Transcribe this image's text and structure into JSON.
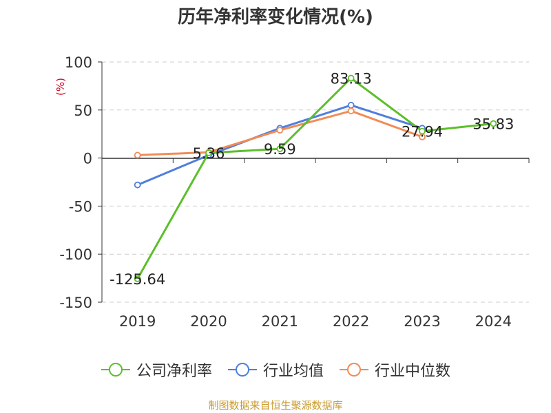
{
  "chart_data": {
    "type": "line",
    "title": "历年净利率变化情况(%)",
    "ylabel": "(%)",
    "ylim": [
      -150,
      100
    ],
    "yticks": [
      100,
      50,
      0,
      -50,
      -100,
      -150
    ],
    "categories": [
      "2019",
      "2020",
      "2021",
      "2022",
      "2023",
      "2024"
    ],
    "grid": true,
    "legend_position": "bottom",
    "series": [
      {
        "name": "公司净利率",
        "color": "#5cbf2a",
        "values": [
          -125.64,
          5.36,
          9.59,
          83.13,
          27.94,
          35.83
        ],
        "labels": [
          "-125.64",
          "5.36",
          "9.59",
          "83.13",
          "27.94",
          "35.83"
        ]
      },
      {
        "name": "行业均值",
        "color": "#4f7fdc",
        "values": [
          -28,
          3,
          31,
          55,
          31,
          null
        ]
      },
      {
        "name": "行业中位数",
        "color": "#f28b56",
        "values": [
          3,
          6,
          29,
          49,
          22,
          null
        ]
      }
    ]
  },
  "footer": {
    "source": "制图数据来自恒生聚源数据库"
  }
}
